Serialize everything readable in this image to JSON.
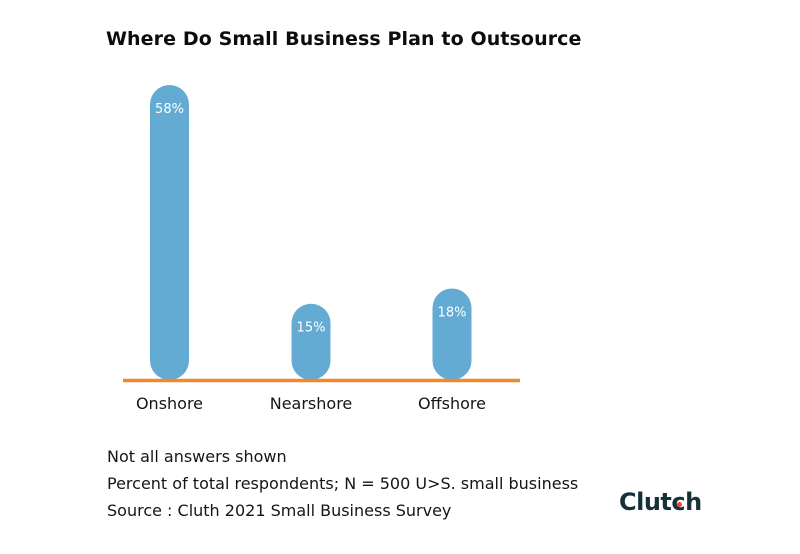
{
  "colors": {
    "bar": "#63abd3",
    "baseline": "#ee8a2e",
    "bar_label": "#ffffff",
    "logo_text": "#17313b",
    "logo_dot": "#ef4335"
  },
  "chart_data": {
    "type": "bar",
    "title": "Where Do Small Business Plan to Outsource",
    "categories": [
      "Onshore",
      "Nearshore",
      "Offshore"
    ],
    "values": [
      58,
      15,
      18
    ],
    "data_labels": [
      "58%",
      "15%",
      "18%"
    ],
    "xlabel": "",
    "ylabel": "",
    "ylim": [
      0,
      60
    ],
    "grid": false,
    "legend": "none",
    "unit": "%"
  },
  "notes": [
    "Not all answers shown",
    "Percent of total respondents; N = 500 U>S. small business",
    "Source : Cluth 2021 Small Business Survey"
  ],
  "logo": {
    "text_before": "Clut",
    "text_dot_letter": "c",
    "text_after": "h"
  }
}
